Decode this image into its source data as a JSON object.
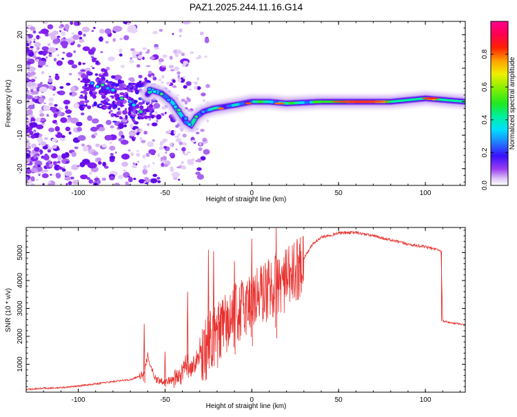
{
  "title": "PAZ1.2025.244.11.16.G14",
  "chart_data": [
    {
      "type": "heatmap",
      "title": "PAZ1.2025.244.11.16.G14",
      "xlabel": "Height of straight line (km)",
      "ylabel": "Frequency (Hz)",
      "xlim": [
        -130,
        123
      ],
      "ylim": [
        -25,
        24
      ],
      "xticks": [
        -100,
        -50,
        0,
        50,
        100
      ],
      "yticks": [
        -20,
        -10,
        0,
        10,
        20
      ],
      "colorbar": {
        "label": "Normalized spectral amplitude",
        "range": [
          0,
          1
        ],
        "ticks": [
          0.0,
          0.2,
          0.4,
          0.6,
          0.8
        ]
      },
      "ridge": {
        "x": [
          -95,
          -88,
          -80,
          -72,
          -65,
          -58,
          -52,
          -46,
          -42,
          -38,
          -35,
          -32,
          -28,
          -22,
          -16,
          -10,
          -5,
          0,
          10,
          20,
          40,
          60,
          80,
          100,
          123
        ],
        "freq": [
          5,
          4.5,
          3.5,
          1,
          -1,
          3.5,
          2.5,
          0,
          -3,
          -6,
          -7,
          -4.5,
          -3,
          -2,
          -1.5,
          -1,
          -0.5,
          0,
          0,
          -0.5,
          0,
          0,
          0,
          1,
          0
        ]
      }
    },
    {
      "type": "line",
      "xlabel": "Height of straight line (km)",
      "ylabel": "SNR (10 * v/v)",
      "xlim": [
        -130,
        123
      ],
      "ylim": [
        0,
        5900
      ],
      "xticks": [
        -100,
        -50,
        0,
        50,
        100
      ],
      "yticks": [
        1000,
        2000,
        3000,
        4000,
        5000
      ],
      "color": "#e8312e",
      "series": [
        {
          "name": "SNR",
          "x": [
            -130,
            -120,
            -110,
            -100,
            -90,
            -80,
            -70,
            -62,
            -60,
            -57,
            -55,
            -50,
            -45,
            -40,
            -38,
            -35,
            -30,
            -25,
            -20,
            -15,
            -10,
            -5,
            0,
            5,
            10,
            15,
            20,
            25,
            30,
            35,
            40,
            50,
            60,
            70,
            80,
            90,
            100,
            108,
            109,
            110,
            115,
            120,
            123
          ],
          "y": [
            100,
            140,
            160,
            220,
            300,
            380,
            450,
            650,
            1300,
            700,
            450,
            380,
            450,
            650,
            1100,
            900,
            1300,
            1700,
            2000,
            2400,
            2700,
            3000,
            3300,
            3500,
            3700,
            3900,
            4000,
            4300,
            4800,
            5300,
            5550,
            5700,
            5720,
            5600,
            5450,
            5300,
            5200,
            5100,
            5050,
            2550,
            2480,
            2450,
            2400
          ]
        }
      ],
      "spikes": [
        {
          "x": -62,
          "y": 2450
        },
        {
          "x": -50,
          "y": 1450
        },
        {
          "x": -37,
          "y": 3600
        },
        {
          "x": -25,
          "y": 5100
        },
        {
          "x": -22,
          "y": 5050
        },
        {
          "x": -10,
          "y": 4700
        },
        {
          "x": 0,
          "y": 5500
        },
        {
          "x": 14,
          "y": 5900
        }
      ]
    }
  ]
}
